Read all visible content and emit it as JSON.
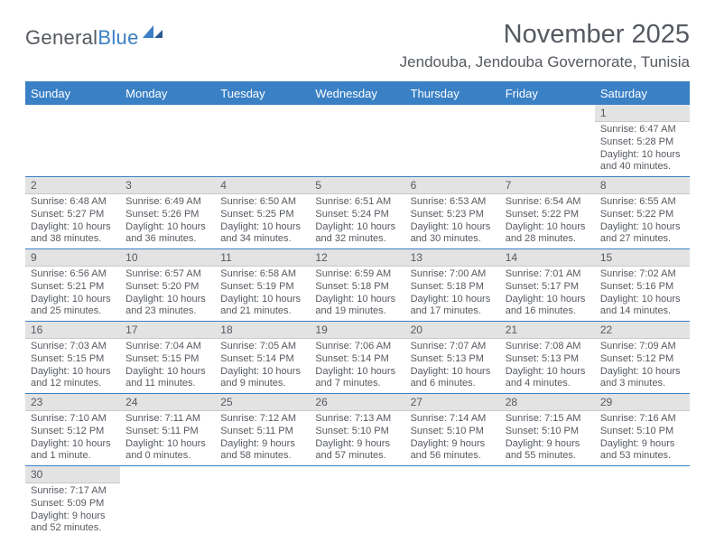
{
  "logo": {
    "text_gray": "General",
    "text_blue": "Blue"
  },
  "header": {
    "month_title": "November 2025",
    "location": "Jendouba, Jendouba Governorate, Tunisia"
  },
  "day_headers": [
    "Sunday",
    "Monday",
    "Tuesday",
    "Wednesday",
    "Thursday",
    "Friday",
    "Saturday"
  ],
  "colors": {
    "header_bg": "#3a80c5",
    "header_fg": "#ffffff",
    "cell_border": "#3a80c5",
    "daynum_bg": "#e3e3e3",
    "text": "#565a60"
  },
  "weeks": [
    [
      {
        "empty": true
      },
      {
        "empty": true
      },
      {
        "empty": true
      },
      {
        "empty": true
      },
      {
        "empty": true
      },
      {
        "empty": true
      },
      {
        "day": "1",
        "sunrise": "Sunrise: 6:47 AM",
        "sunset": "Sunset: 5:28 PM",
        "daylight1": "Daylight: 10 hours",
        "daylight2": "and 40 minutes."
      }
    ],
    [
      {
        "day": "2",
        "sunrise": "Sunrise: 6:48 AM",
        "sunset": "Sunset: 5:27 PM",
        "daylight1": "Daylight: 10 hours",
        "daylight2": "and 38 minutes."
      },
      {
        "day": "3",
        "sunrise": "Sunrise: 6:49 AM",
        "sunset": "Sunset: 5:26 PM",
        "daylight1": "Daylight: 10 hours",
        "daylight2": "and 36 minutes."
      },
      {
        "day": "4",
        "sunrise": "Sunrise: 6:50 AM",
        "sunset": "Sunset: 5:25 PM",
        "daylight1": "Daylight: 10 hours",
        "daylight2": "and 34 minutes."
      },
      {
        "day": "5",
        "sunrise": "Sunrise: 6:51 AM",
        "sunset": "Sunset: 5:24 PM",
        "daylight1": "Daylight: 10 hours",
        "daylight2": "and 32 minutes."
      },
      {
        "day": "6",
        "sunrise": "Sunrise: 6:53 AM",
        "sunset": "Sunset: 5:23 PM",
        "daylight1": "Daylight: 10 hours",
        "daylight2": "and 30 minutes."
      },
      {
        "day": "7",
        "sunrise": "Sunrise: 6:54 AM",
        "sunset": "Sunset: 5:22 PM",
        "daylight1": "Daylight: 10 hours",
        "daylight2": "and 28 minutes."
      },
      {
        "day": "8",
        "sunrise": "Sunrise: 6:55 AM",
        "sunset": "Sunset: 5:22 PM",
        "daylight1": "Daylight: 10 hours",
        "daylight2": "and 27 minutes."
      }
    ],
    [
      {
        "day": "9",
        "sunrise": "Sunrise: 6:56 AM",
        "sunset": "Sunset: 5:21 PM",
        "daylight1": "Daylight: 10 hours",
        "daylight2": "and 25 minutes."
      },
      {
        "day": "10",
        "sunrise": "Sunrise: 6:57 AM",
        "sunset": "Sunset: 5:20 PM",
        "daylight1": "Daylight: 10 hours",
        "daylight2": "and 23 minutes."
      },
      {
        "day": "11",
        "sunrise": "Sunrise: 6:58 AM",
        "sunset": "Sunset: 5:19 PM",
        "daylight1": "Daylight: 10 hours",
        "daylight2": "and 21 minutes."
      },
      {
        "day": "12",
        "sunrise": "Sunrise: 6:59 AM",
        "sunset": "Sunset: 5:18 PM",
        "daylight1": "Daylight: 10 hours",
        "daylight2": "and 19 minutes."
      },
      {
        "day": "13",
        "sunrise": "Sunrise: 7:00 AM",
        "sunset": "Sunset: 5:18 PM",
        "daylight1": "Daylight: 10 hours",
        "daylight2": "and 17 minutes."
      },
      {
        "day": "14",
        "sunrise": "Sunrise: 7:01 AM",
        "sunset": "Sunset: 5:17 PM",
        "daylight1": "Daylight: 10 hours",
        "daylight2": "and 16 minutes."
      },
      {
        "day": "15",
        "sunrise": "Sunrise: 7:02 AM",
        "sunset": "Sunset: 5:16 PM",
        "daylight1": "Daylight: 10 hours",
        "daylight2": "and 14 minutes."
      }
    ],
    [
      {
        "day": "16",
        "sunrise": "Sunrise: 7:03 AM",
        "sunset": "Sunset: 5:15 PM",
        "daylight1": "Daylight: 10 hours",
        "daylight2": "and 12 minutes."
      },
      {
        "day": "17",
        "sunrise": "Sunrise: 7:04 AM",
        "sunset": "Sunset: 5:15 PM",
        "daylight1": "Daylight: 10 hours",
        "daylight2": "and 11 minutes."
      },
      {
        "day": "18",
        "sunrise": "Sunrise: 7:05 AM",
        "sunset": "Sunset: 5:14 PM",
        "daylight1": "Daylight: 10 hours",
        "daylight2": "and 9 minutes."
      },
      {
        "day": "19",
        "sunrise": "Sunrise: 7:06 AM",
        "sunset": "Sunset: 5:14 PM",
        "daylight1": "Daylight: 10 hours",
        "daylight2": "and 7 minutes."
      },
      {
        "day": "20",
        "sunrise": "Sunrise: 7:07 AM",
        "sunset": "Sunset: 5:13 PM",
        "daylight1": "Daylight: 10 hours",
        "daylight2": "and 6 minutes."
      },
      {
        "day": "21",
        "sunrise": "Sunrise: 7:08 AM",
        "sunset": "Sunset: 5:13 PM",
        "daylight1": "Daylight: 10 hours",
        "daylight2": "and 4 minutes."
      },
      {
        "day": "22",
        "sunrise": "Sunrise: 7:09 AM",
        "sunset": "Sunset: 5:12 PM",
        "daylight1": "Daylight: 10 hours",
        "daylight2": "and 3 minutes."
      }
    ],
    [
      {
        "day": "23",
        "sunrise": "Sunrise: 7:10 AM",
        "sunset": "Sunset: 5:12 PM",
        "daylight1": "Daylight: 10 hours",
        "daylight2": "and 1 minute."
      },
      {
        "day": "24",
        "sunrise": "Sunrise: 7:11 AM",
        "sunset": "Sunset: 5:11 PM",
        "daylight1": "Daylight: 10 hours",
        "daylight2": "and 0 minutes."
      },
      {
        "day": "25",
        "sunrise": "Sunrise: 7:12 AM",
        "sunset": "Sunset: 5:11 PM",
        "daylight1": "Daylight: 9 hours",
        "daylight2": "and 58 minutes."
      },
      {
        "day": "26",
        "sunrise": "Sunrise: 7:13 AM",
        "sunset": "Sunset: 5:10 PM",
        "daylight1": "Daylight: 9 hours",
        "daylight2": "and 57 minutes."
      },
      {
        "day": "27",
        "sunrise": "Sunrise: 7:14 AM",
        "sunset": "Sunset: 5:10 PM",
        "daylight1": "Daylight: 9 hours",
        "daylight2": "and 56 minutes."
      },
      {
        "day": "28",
        "sunrise": "Sunrise: 7:15 AM",
        "sunset": "Sunset: 5:10 PM",
        "daylight1": "Daylight: 9 hours",
        "daylight2": "and 55 minutes."
      },
      {
        "day": "29",
        "sunrise": "Sunrise: 7:16 AM",
        "sunset": "Sunset: 5:10 PM",
        "daylight1": "Daylight: 9 hours",
        "daylight2": "and 53 minutes."
      }
    ],
    [
      {
        "day": "30",
        "sunrise": "Sunrise: 7:17 AM",
        "sunset": "Sunset: 5:09 PM",
        "daylight1": "Daylight: 9 hours",
        "daylight2": "and 52 minutes."
      },
      {
        "empty": true
      },
      {
        "empty": true
      },
      {
        "empty": true
      },
      {
        "empty": true
      },
      {
        "empty": true
      },
      {
        "empty": true
      }
    ]
  ]
}
